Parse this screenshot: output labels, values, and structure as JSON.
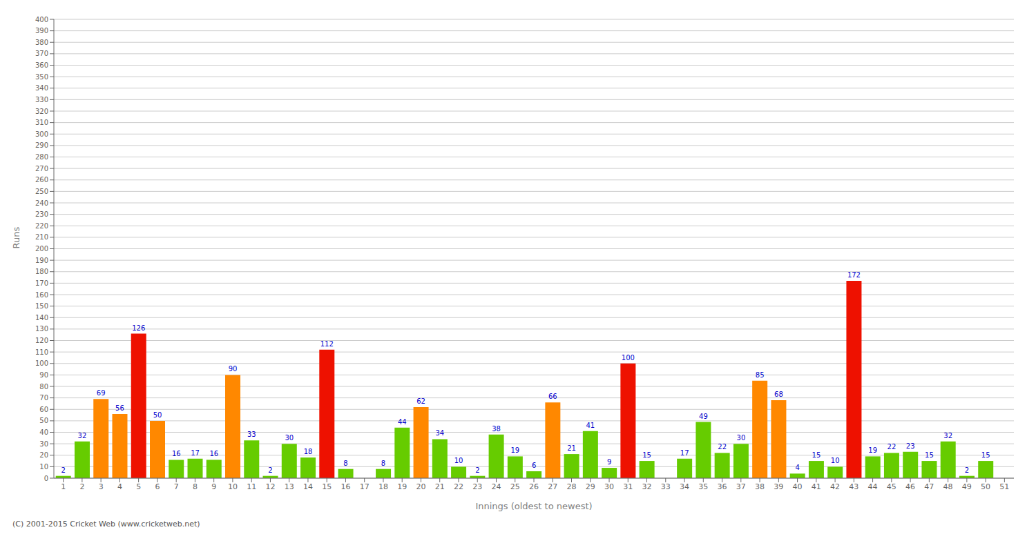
{
  "chart_data": {
    "type": "bar",
    "xlabel": "Innings (oldest to newest)",
    "ylabel": "Runs",
    "categories": [
      "1",
      "2",
      "3",
      "4",
      "5",
      "6",
      "7",
      "8",
      "9",
      "10",
      "11",
      "12",
      "13",
      "14",
      "15",
      "16",
      "17",
      "18",
      "19",
      "20",
      "21",
      "22",
      "23",
      "24",
      "25",
      "26",
      "27",
      "28",
      "29",
      "30",
      "31",
      "32",
      "33",
      "34",
      "35",
      "36",
      "37",
      "38",
      "39",
      "40",
      "41",
      "42",
      "43",
      "44",
      "45",
      "46",
      "47",
      "48",
      "49",
      "50",
      "51"
    ],
    "values": [
      2,
      32,
      69,
      56,
      126,
      50,
      16,
      17,
      16,
      90,
      33,
      2,
      30,
      18,
      112,
      8,
      0,
      8,
      44,
      62,
      34,
      10,
      2,
      38,
      19,
      6,
      66,
      21,
      41,
      9,
      100,
      15,
      0,
      17,
      49,
      22,
      30,
      85,
      68,
      4,
      15,
      10,
      172,
      19,
      22,
      23,
      15,
      32,
      2,
      15,
      0
    ],
    "colors": [
      "#66cc00",
      "#66cc00",
      "#ff8800",
      "#ff8800",
      "#ee1100",
      "#ff8800",
      "#66cc00",
      "#66cc00",
      "#66cc00",
      "#ff8800",
      "#66cc00",
      "#66cc00",
      "#66cc00",
      "#66cc00",
      "#ee1100",
      "#66cc00",
      "#66cc00",
      "#66cc00",
      "#66cc00",
      "#ff8800",
      "#66cc00",
      "#66cc00",
      "#66cc00",
      "#66cc00",
      "#66cc00",
      "#66cc00",
      "#ff8800",
      "#66cc00",
      "#66cc00",
      "#66cc00",
      "#ee1100",
      "#66cc00",
      "#66cc00",
      "#66cc00",
      "#66cc00",
      "#66cc00",
      "#66cc00",
      "#ff8800",
      "#ff8800",
      "#66cc00",
      "#66cc00",
      "#66cc00",
      "#ee1100",
      "#66cc00",
      "#66cc00",
      "#66cc00",
      "#66cc00",
      "#66cc00",
      "#66cc00",
      "#66cc00",
      "#66cc00"
    ],
    "ylim": [
      0,
      400
    ],
    "yticks": [
      0,
      10,
      20,
      30,
      40,
      50,
      60,
      70,
      80,
      90,
      100,
      110,
      120,
      130,
      140,
      150,
      160,
      170,
      180,
      190,
      200,
      210,
      220,
      230,
      240,
      250,
      260,
      270,
      280,
      290,
      300,
      310,
      320,
      330,
      340,
      350,
      360,
      370,
      380,
      390,
      400
    ],
    "grid": true,
    "data_labels": true,
    "annotations": [
      "(C) 2001-2015 Cricket Web (www.cricketweb.net)"
    ]
  }
}
